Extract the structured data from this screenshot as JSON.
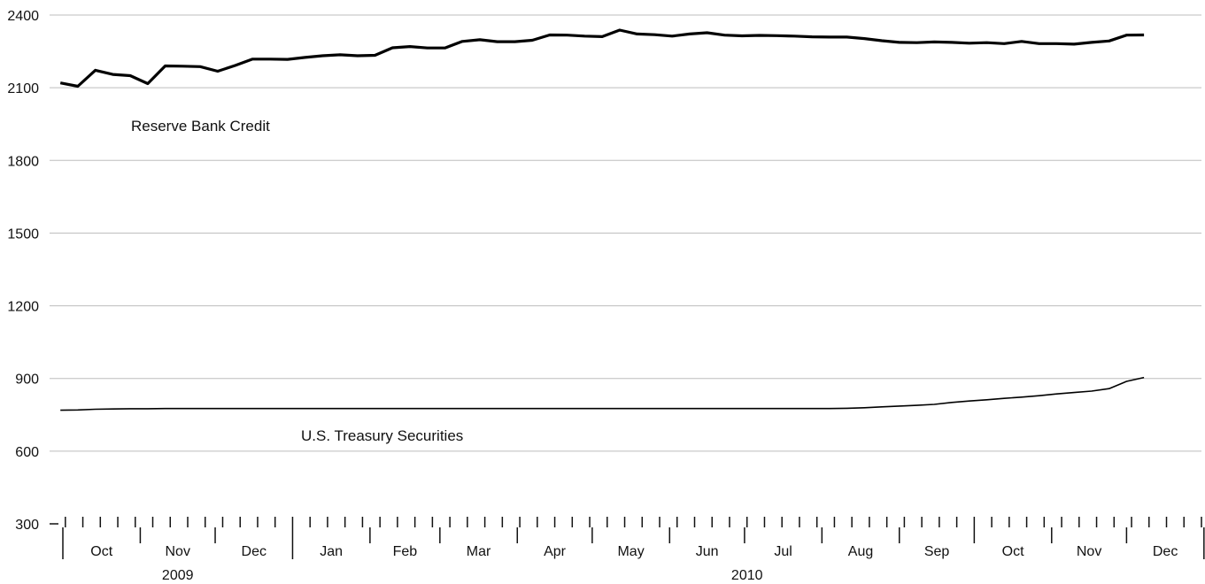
{
  "chart_data": {
    "type": "line",
    "title": "",
    "xlabel": "",
    "ylabel": "",
    "ylim": [
      300,
      2400
    ],
    "yticks": [
      2400,
      2100,
      1800,
      1500,
      1200,
      900,
      600,
      300
    ],
    "grid": true,
    "x_start": "2009-09-30",
    "x_step_days": 7,
    "months": [
      "Oct",
      "Nov",
      "Dec",
      "Jan",
      "Feb",
      "Mar",
      "Apr",
      "May",
      "Jun",
      "Jul",
      "Aug",
      "Sep",
      "Oct",
      "Nov",
      "Dec"
    ],
    "years": [
      {
        "label": "2009"
      },
      {
        "label": "2010"
      }
    ],
    "series": [
      {
        "name": "Reserve Bank Credit",
        "color": "#000000",
        "values": [
          2120,
          2106,
          2172,
          2155,
          2150,
          2117,
          2190,
          2189,
          2187,
          2168,
          2192,
          2218,
          2218,
          2217,
          2225,
          2232,
          2236,
          2232,
          2234,
          2265,
          2270,
          2264,
          2264,
          2291,
          2298,
          2290,
          2290,
          2296,
          2318,
          2317,
          2313,
          2311,
          2338,
          2322,
          2319,
          2313,
          2322,
          2327,
          2317,
          2314,
          2316,
          2315,
          2313,
          2310,
          2309,
          2309,
          2303,
          2294,
          2287,
          2286,
          2289,
          2287,
          2284,
          2286,
          2282,
          2291,
          2282,
          2282,
          2280,
          2287,
          2293,
          2317,
          2318
        ]
      },
      {
        "name": "U.S. Treasury Securities",
        "color": "#000000",
        "values": [
          769,
          770,
          773,
          774,
          775,
          775,
          776,
          776,
          776,
          776,
          776,
          776,
          776,
          776,
          776,
          776,
          776,
          776,
          776,
          776,
          776,
          776,
          776,
          776,
          776,
          776,
          776,
          776,
          776,
          776,
          776,
          776,
          776,
          776,
          776,
          776,
          776,
          776,
          776,
          776,
          776,
          776,
          776,
          776,
          776,
          777,
          779,
          783,
          786,
          789,
          793,
          801,
          807,
          812,
          818,
          823,
          829,
          836,
          842,
          848,
          858,
          888,
          904
        ]
      }
    ]
  }
}
